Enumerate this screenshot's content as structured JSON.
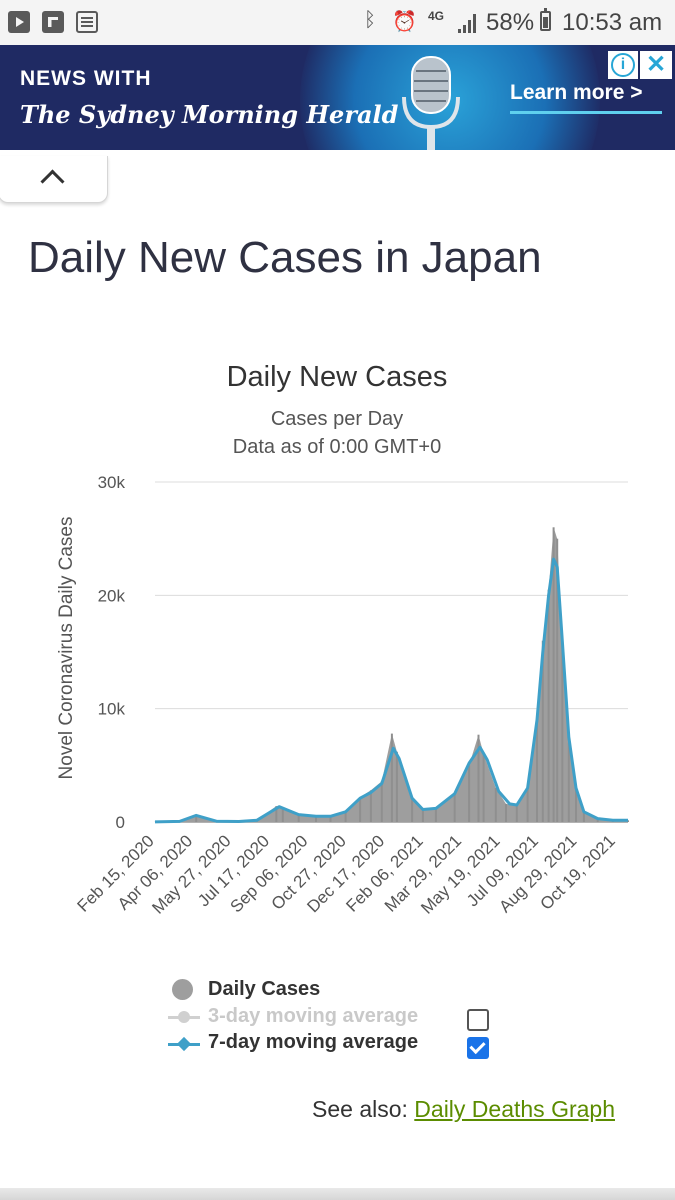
{
  "status_bar": {
    "time": "10:53 am",
    "battery": "58%",
    "network": "4G",
    "icons": [
      "youtube-icon",
      "flipboard-icon",
      "news-icon",
      "bluetooth-icon",
      "alarm-icon",
      "signal-icon",
      "battery-icon"
    ]
  },
  "ad": {
    "heading": "NEWS WITH",
    "publication": "The Sydney Morning Herald",
    "cta": "Learn more >",
    "info_glyph": "i",
    "close_glyph": "✕",
    "bg_color": "#1f2a63",
    "accent_color": "#5fd0ee"
  },
  "page": {
    "title": "Daily New Cases in Japan"
  },
  "legend": {
    "daily": "Daily Cases",
    "ma3": "3-day moving average",
    "ma7": "7-day moving average",
    "ma3_checked": false,
    "ma7_checked": true
  },
  "see_also": {
    "prefix": "See also: ",
    "link": "Daily Deaths Graph",
    "link_color": "#5b8c00"
  },
  "chart_data": {
    "type": "bar",
    "title": "Daily New Cases",
    "subtitle_lines": [
      "Cases per Day",
      "Data as of 0:00 GMT+0"
    ],
    "ylabel": "Novel Coronavirus Daily Cases",
    "xlabel": "",
    "ylim": [
      0,
      30000
    ],
    "y_ticks": [
      0,
      10000,
      20000,
      30000
    ],
    "y_tick_labels": [
      "0",
      "10k",
      "20k",
      "30k"
    ],
    "x_tick_labels": [
      "Feb 15, 2020",
      "Apr 06, 2020",
      "May 27, 2020",
      "Jul 17, 2020",
      "Sep 06, 2020",
      "Oct 27, 2020",
      "Dec 17, 2020",
      "Feb 06, 2021",
      "Mar 29, 2021",
      "May 19, 2021",
      "Jul 09, 2021",
      "Aug 29, 2021",
      "Oct 19, 2021"
    ],
    "grid": true,
    "bar_color": "#9e9e9e",
    "ma7_color": "#3fa0c8",
    "series": [
      {
        "name": "Daily Cases",
        "points": [
          [
            "2020-02-15",
            10
          ],
          [
            "2020-03-20",
            50
          ],
          [
            "2020-04-12",
            600
          ],
          [
            "2020-05-10",
            60
          ],
          [
            "2020-06-10",
            40
          ],
          [
            "2020-07-05",
            150
          ],
          [
            "2020-08-01",
            1400
          ],
          [
            "2020-08-10",
            1200
          ],
          [
            "2020-09-01",
            600
          ],
          [
            "2020-09-25",
            500
          ],
          [
            "2020-10-15",
            500
          ],
          [
            "2020-11-05",
            900
          ],
          [
            "2020-11-25",
            2200
          ],
          [
            "2020-12-10",
            2800
          ],
          [
            "2020-12-25",
            3600
          ],
          [
            "2021-01-08",
            7800
          ],
          [
            "2021-01-15",
            6200
          ],
          [
            "2021-02-05",
            2000
          ],
          [
            "2021-02-20",
            1100
          ],
          [
            "2021-03-10",
            1200
          ],
          [
            "2021-04-05",
            2500
          ],
          [
            "2021-04-25",
            5000
          ],
          [
            "2021-05-08",
            7700
          ],
          [
            "2021-05-15",
            6000
          ],
          [
            "2021-06-01",
            3000
          ],
          [
            "2021-06-15",
            1600
          ],
          [
            "2021-06-30",
            1500
          ],
          [
            "2021-07-15",
            3000
          ],
          [
            "2021-07-28",
            9500
          ],
          [
            "2021-08-05",
            16000
          ],
          [
            "2021-08-13",
            20500
          ],
          [
            "2021-08-20",
            26000
          ],
          [
            "2021-08-25",
            25000
          ],
          [
            "2021-09-01",
            16000
          ],
          [
            "2021-09-10",
            7000
          ],
          [
            "2021-09-20",
            3000
          ],
          [
            "2021-10-01",
            800
          ],
          [
            "2021-10-20",
            300
          ],
          [
            "2021-11-10",
            150
          ],
          [
            "2021-12-01",
            150
          ]
        ]
      },
      {
        "name": "7-day moving average",
        "points": [
          [
            "2020-02-15",
            10
          ],
          [
            "2020-03-20",
            50
          ],
          [
            "2020-04-12",
            580
          ],
          [
            "2020-05-10",
            70
          ],
          [
            "2020-06-10",
            40
          ],
          [
            "2020-07-05",
            150
          ],
          [
            "2020-08-05",
            1350
          ],
          [
            "2020-09-01",
            650
          ],
          [
            "2020-09-25",
            500
          ],
          [
            "2020-10-15",
            500
          ],
          [
            "2020-11-05",
            900
          ],
          [
            "2020-11-25",
            2100
          ],
          [
            "2020-12-10",
            2600
          ],
          [
            "2020-12-25",
            3400
          ],
          [
            "2021-01-10",
            6500
          ],
          [
            "2021-01-18",
            5600
          ],
          [
            "2021-02-05",
            2100
          ],
          [
            "2021-02-20",
            1100
          ],
          [
            "2021-03-10",
            1200
          ],
          [
            "2021-04-05",
            2500
          ],
          [
            "2021-04-25",
            5200
          ],
          [
            "2021-05-10",
            6600
          ],
          [
            "2021-05-20",
            5500
          ],
          [
            "2021-06-05",
            2700
          ],
          [
            "2021-06-20",
            1600
          ],
          [
            "2021-06-30",
            1500
          ],
          [
            "2021-07-15",
            3000
          ],
          [
            "2021-07-28",
            9000
          ],
          [
            "2021-08-05",
            15000
          ],
          [
            "2021-08-13",
            20000
          ],
          [
            "2021-08-20",
            23200
          ],
          [
            "2021-08-25",
            22500
          ],
          [
            "2021-09-01",
            16000
          ],
          [
            "2021-09-10",
            7500
          ],
          [
            "2021-09-20",
            3000
          ],
          [
            "2021-10-01",
            900
          ],
          [
            "2021-10-20",
            300
          ],
          [
            "2021-11-10",
            150
          ],
          [
            "2021-12-01",
            150
          ]
        ]
      }
    ]
  }
}
